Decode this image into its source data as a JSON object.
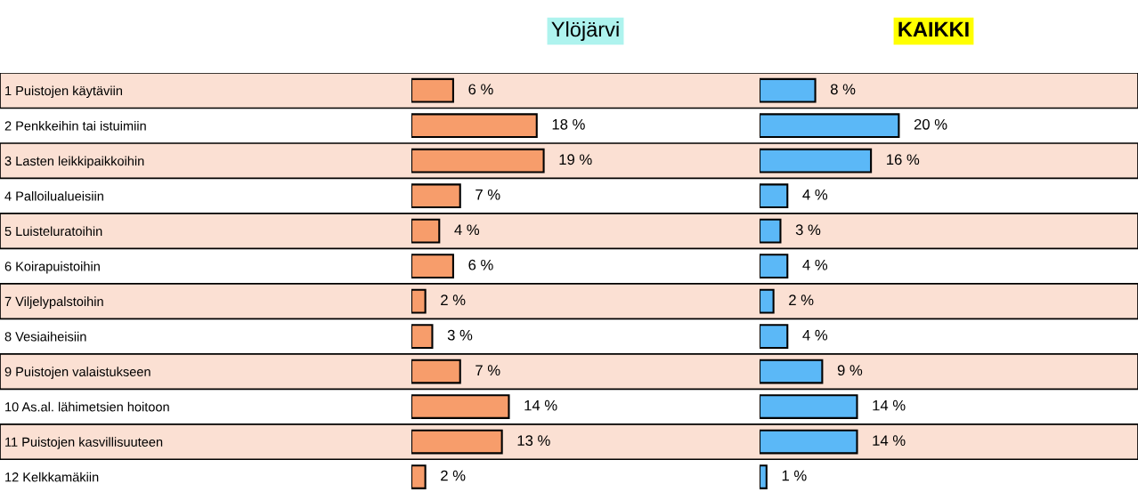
{
  "chart_data": [
    {
      "type": "bar",
      "orientation": "horizontal",
      "title": "Ylöjärvi",
      "color": "#f79d6b",
      "tick_labels": "y",
      "categories": [
        "1 Puistojen käytäviin",
        "2 Penkkeihin tai istuimiin",
        "3 Lasten leikkipaikkoihin",
        "4 Palloilualueisiin",
        "5 Luisteluratoihin",
        "6 Koirapuistoihin",
        "7 Viljelypalstoihin",
        "8 Vesiaiheisiin",
        "9 Puistojen valaistukseen",
        "10 As.al. lähimetsien hoitoon",
        "11 Puistojen kasvillisuuteen",
        "12 Kelkkamäkiin"
      ],
      "values": [
        6,
        18,
        19,
        7,
        4,
        6,
        2,
        3,
        7,
        14,
        13,
        2
      ],
      "value_labels": [
        "6 %",
        "18 %",
        "19 %",
        "7 %",
        "4 %",
        "6 %",
        "2 %",
        "3 %",
        "7 %",
        "14 %",
        "13 %",
        "2 %"
      ]
    },
    {
      "type": "bar",
      "orientation": "horizontal",
      "title": "KAIKKI",
      "color": "#5bb8f7",
      "tick_labels": false,
      "values": [
        8,
        20,
        16,
        4,
        3,
        4,
        2,
        4,
        9,
        14,
        14,
        1
      ],
      "value_labels": [
        "8 %",
        "20 %",
        "16 %",
        "4 %",
        "3 %",
        "4 %",
        "2 %",
        "4 %",
        "9 %",
        "14 %",
        "14 %",
        "1 %"
      ]
    }
  ]
}
